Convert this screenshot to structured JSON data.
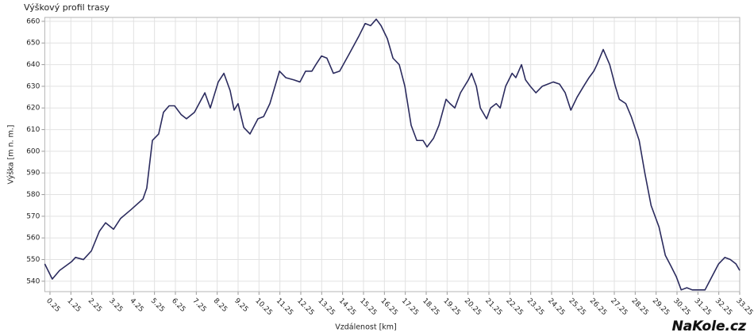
{
  "chart_data": {
    "type": "line",
    "title": "Výškový profil trasy",
    "x_label": "Vzdálenost [km]",
    "y_label": "Výška [m n. m.]",
    "watermark": "NaKole.cz",
    "color": "#2b2b5e",
    "grid": true,
    "xlim": [
      0,
      33.25
    ],
    "ylim": [
      535.2,
      661.8
    ],
    "xticks": [
      0.25,
      1.25,
      2.25,
      3.25,
      4.25,
      5.25,
      6.25,
      7.25,
      8.25,
      9.25,
      10.25,
      11.25,
      12.25,
      13.25,
      14.25,
      15.25,
      16.25,
      17.25,
      18.25,
      19.25,
      20.25,
      21.25,
      22.25,
      23.25,
      24.25,
      25.25,
      26.25,
      27.25,
      28.25,
      29.25,
      30.25,
      31.25,
      32.25,
      33.25
    ],
    "yticks": [
      540,
      550,
      560,
      570,
      580,
      590,
      600,
      610,
      620,
      630,
      640,
      650,
      660
    ],
    "x": [
      0,
      0.36,
      0.71,
      1.28,
      1.47,
      1.85,
      2.23,
      2.61,
      2.91,
      3.29,
      3.63,
      4.12,
      4.7,
      4.88,
      5.15,
      5.45,
      5.68,
      5.95,
      6.21,
      6.52,
      6.78,
      7.16,
      7.66,
      7.92,
      8.3,
      8.57,
      8.87,
      9.06,
      9.25,
      9.52,
      9.82,
      10.2,
      10.47,
      10.77,
      11.23,
      11.53,
      11.91,
      12.21,
      12.48,
      12.78,
      12.97,
      13.24,
      13.5,
      13.81,
      14.11,
      14.57,
      15.02,
      15.33,
      15.59,
      15.86,
      16.09,
      16.39,
      16.66,
      16.96,
      17.23,
      17.53,
      17.8,
      18.1,
      18.29,
      18.6,
      18.86,
      19.2,
      19.39,
      19.62,
      19.89,
      20.27,
      20.42,
      20.65,
      20.84,
      21.14,
      21.33,
      21.6,
      21.79,
      22.05,
      22.36,
      22.54,
      22.81,
      23.0,
      23.23,
      23.5,
      23.8,
      24.07,
      24.33,
      24.63,
      24.9,
      25.17,
      25.47,
      25.78,
      26.04,
      26.27,
      26.42,
      26.72,
      27.03,
      27.3,
      27.49,
      27.8,
      28.06,
      28.44,
      28.71,
      29.01,
      29.39,
      29.69,
      29.96,
      30.22,
      30.45,
      30.72,
      30.98,
      31.59,
      31.86,
      32.24,
      32.54,
      32.8,
      33.07,
      33.25
    ],
    "values": [
      548,
      541,
      545,
      549,
      551,
      550,
      554,
      563,
      567,
      564,
      569,
      573,
      578,
      583,
      605,
      608,
      618,
      621,
      621,
      617,
      615,
      618,
      627,
      620,
      632,
      636,
      628,
      619,
      622,
      611,
      608,
      615,
      616,
      622,
      637,
      634,
      633,
      632,
      637,
      637,
      640,
      644,
      643,
      636,
      637,
      645,
      653,
      659,
      658,
      661,
      658,
      652,
      643,
      640,
      630,
      612,
      605,
      605,
      602,
      606,
      612,
      624,
      622,
      620,
      627,
      633,
      636,
      630,
      620,
      615,
      620,
      622,
      620,
      630,
      636,
      634,
      640,
      633,
      630,
      627,
      630,
      631,
      632,
      631,
      627,
      619,
      625,
      630,
      634,
      637,
      640,
      647,
      640,
      630,
      624,
      622,
      616,
      605,
      590,
      575,
      565,
      552,
      547,
      542,
      536,
      537,
      536,
      536,
      541,
      548,
      551,
      550,
      548,
      545
    ]
  }
}
